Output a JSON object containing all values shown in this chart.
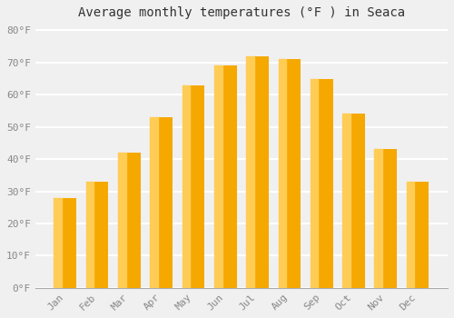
{
  "title": "Average monthly temperatures (°F ) in Seaca",
  "months": [
    "Jan",
    "Feb",
    "Mar",
    "Apr",
    "May",
    "Jun",
    "Jul",
    "Aug",
    "Sep",
    "Oct",
    "Nov",
    "Dec"
  ],
  "values": [
    28,
    33,
    42,
    53,
    63,
    69,
    72,
    71,
    65,
    54,
    43,
    33
  ],
  "bar_color_main": "#F5A800",
  "bar_color_light": "#FFCC55",
  "ylim": [
    0,
    82
  ],
  "yticks": [
    0,
    10,
    20,
    30,
    40,
    50,
    60,
    70,
    80
  ],
  "background_color": "#f0f0f0",
  "plot_bg_color": "#f0f0f0",
  "grid_color": "#ffffff",
  "title_fontsize": 10,
  "tick_fontsize": 8,
  "tick_color": "#888888",
  "font_family": "monospace"
}
